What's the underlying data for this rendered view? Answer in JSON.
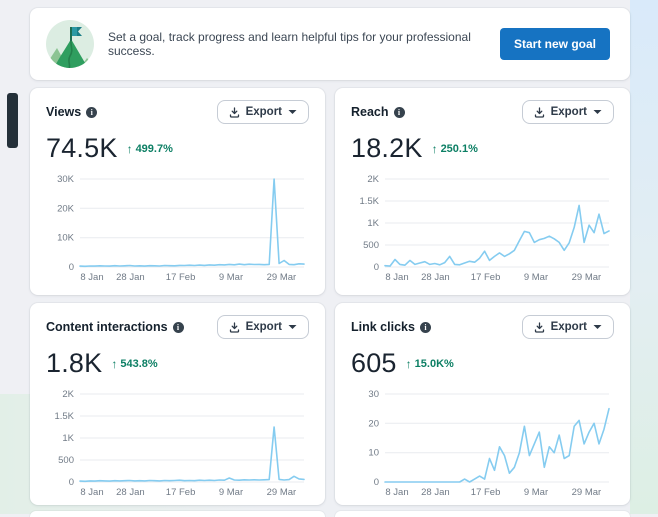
{
  "banner": {
    "message": "Set a goal, track progress and learn helpful tips for your professional success.",
    "button_label": "Start new goal"
  },
  "labels": {
    "export": "Export"
  },
  "glyphs": {
    "info": "i",
    "arrow_up": "↑"
  },
  "colors": {
    "line": "#85ccf0",
    "grid": "#e9ebef",
    "accent_blue": "#1673c2",
    "delta_green": "#0c7f64",
    "side_tab": "#243039"
  },
  "cards": [
    {
      "title": "Views",
      "value": "74.5K",
      "delta": "499.7%"
    },
    {
      "title": "Reach",
      "value": "18.2K",
      "delta": "250.1%"
    },
    {
      "title": "Content interactions",
      "value": "1.8K",
      "delta": "543.8%"
    },
    {
      "title": "Link clicks",
      "value": "605",
      "delta": "15.0K%"
    }
  ],
  "chart_data": [
    {
      "type": "line",
      "title": "Views",
      "ylim": [
        0,
        30000
      ],
      "legend": "none",
      "grid": "horizontal",
      "yticks": [
        {
          "v": 0,
          "l": "0"
        },
        {
          "v": 10000,
          "l": "10K"
        },
        {
          "v": 20000,
          "l": "20K"
        },
        {
          "v": 30000,
          "l": "30K"
        }
      ],
      "xticks": [
        {
          "f": 0,
          "l": "8 Jan"
        },
        {
          "f": 0.225,
          "l": "28 Jan"
        },
        {
          "f": 0.449,
          "l": "17 Feb"
        },
        {
          "f": 0.674,
          "l": "9 Mar"
        },
        {
          "f": 0.899,
          "l": "29 Mar"
        }
      ],
      "values": [
        300,
        250,
        350,
        300,
        400,
        350,
        300,
        450,
        350,
        400,
        500,
        350,
        400,
        300,
        450,
        400,
        350,
        500,
        450,
        400,
        550,
        500,
        600,
        500,
        650,
        550,
        700,
        600,
        800,
        700,
        900,
        750,
        1000,
        800,
        950,
        850,
        900,
        800,
        900,
        30000,
        1200,
        2200,
        900,
        800,
        1100,
        1000
      ]
    },
    {
      "type": "line",
      "title": "Reach",
      "ylim": [
        0,
        2000
      ],
      "legend": "none",
      "grid": "horizontal",
      "yticks": [
        {
          "v": 0,
          "l": "0"
        },
        {
          "v": 500,
          "l": "500"
        },
        {
          "v": 1000,
          "l": "1K"
        },
        {
          "v": 1500,
          "l": "1.5K"
        },
        {
          "v": 2000,
          "l": "2K"
        }
      ],
      "xticks": [
        {
          "f": 0,
          "l": "8 Jan"
        },
        {
          "f": 0.225,
          "l": "28 Jan"
        },
        {
          "f": 0.449,
          "l": "17 Feb"
        },
        {
          "f": 0.674,
          "l": "9 Mar"
        },
        {
          "f": 0.899,
          "l": "29 Mar"
        }
      ],
      "values": [
        30,
        20,
        170,
        60,
        40,
        150,
        60,
        90,
        120,
        60,
        80,
        50,
        100,
        240,
        60,
        50,
        90,
        130,
        110,
        200,
        360,
        150,
        240,
        320,
        240,
        300,
        380,
        600,
        810,
        780,
        560,
        620,
        650,
        700,
        640,
        560,
        380,
        550,
        900,
        1400,
        560,
        950,
        780,
        1200,
        760,
        820
      ]
    },
    {
      "type": "line",
      "title": "Content interactions",
      "ylim": [
        0,
        2000
      ],
      "legend": "none",
      "grid": "horizontal",
      "yticks": [
        {
          "v": 0,
          "l": "0"
        },
        {
          "v": 500,
          "l": "500"
        },
        {
          "v": 1000,
          "l": "1K"
        },
        {
          "v": 1500,
          "l": "1.5K"
        },
        {
          "v": 2000,
          "l": "2K"
        }
      ],
      "xticks": [
        {
          "f": 0,
          "l": "8 Jan"
        },
        {
          "f": 0.225,
          "l": "28 Jan"
        },
        {
          "f": 0.449,
          "l": "17 Feb"
        },
        {
          "f": 0.674,
          "l": "9 Mar"
        },
        {
          "f": 0.899,
          "l": "29 Mar"
        }
      ],
      "values": [
        20,
        15,
        25,
        20,
        30,
        25,
        20,
        30,
        25,
        30,
        35,
        25,
        30,
        25,
        35,
        30,
        25,
        35,
        30,
        35,
        40,
        30,
        35,
        30,
        40,
        35,
        40,
        35,
        45,
        40,
        90,
        45,
        40,
        50,
        45,
        50,
        45,
        50,
        55,
        1250,
        60,
        45,
        55,
        130,
        70,
        60
      ]
    },
    {
      "type": "line",
      "title": "Link clicks",
      "ylim": [
        0,
        30
      ],
      "legend": "none",
      "grid": "horizontal",
      "yticks": [
        {
          "v": 0,
          "l": "0"
        },
        {
          "v": 10,
          "l": "10"
        },
        {
          "v": 20,
          "l": "20"
        },
        {
          "v": 30,
          "l": "30"
        }
      ],
      "xticks": [
        {
          "f": 0,
          "l": "8 Jan"
        },
        {
          "f": 0.225,
          "l": "28 Jan"
        },
        {
          "f": 0.449,
          "l": "17 Feb"
        },
        {
          "f": 0.674,
          "l": "9 Mar"
        },
        {
          "f": 0.899,
          "l": "29 Mar"
        }
      ],
      "values": [
        0,
        0,
        0,
        0,
        0,
        0,
        0,
        0,
        0,
        0,
        0,
        0,
        0,
        0,
        0,
        0,
        1,
        0,
        1,
        2,
        1,
        8,
        4,
        12,
        9,
        3,
        5,
        10,
        19,
        9,
        13,
        17,
        5,
        12,
        10,
        16,
        8,
        9,
        19,
        21,
        13,
        17,
        20,
        13,
        18,
        25
      ]
    }
  ]
}
